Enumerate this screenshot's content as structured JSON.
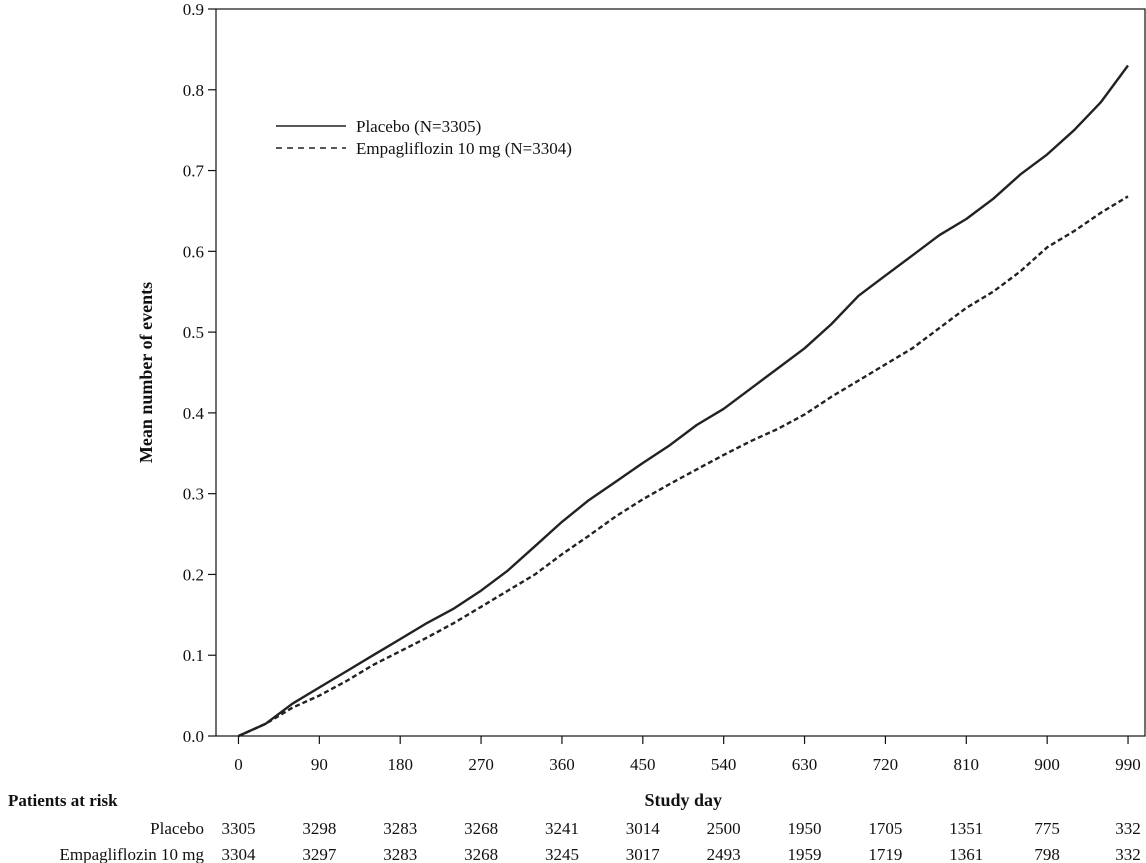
{
  "chart_data": {
    "type": "line",
    "title": "",
    "xlabel": "Study day",
    "ylabel": "Mean number of events",
    "xlim": [
      -25,
      1010
    ],
    "ylim": [
      0.0,
      0.9
    ],
    "x_ticks": [
      0,
      90,
      180,
      270,
      360,
      450,
      540,
      630,
      720,
      810,
      900,
      990
    ],
    "x_tick_labels": [
      "0",
      "90",
      "180",
      "270",
      "360",
      "450",
      "540",
      "630",
      "720",
      "810",
      "900",
      "990"
    ],
    "y_ticks": [
      0.0,
      0.1,
      0.2,
      0.3,
      0.4,
      0.5,
      0.6,
      0.7,
      0.8,
      0.9
    ],
    "y_tick_labels": [
      "0.0",
      "0.1",
      "0.2",
      "0.3",
      "0.4",
      "0.5",
      "0.6",
      "0.7",
      "0.8",
      "0.9"
    ],
    "grid": false,
    "legend_position": "top-left",
    "series": [
      {
        "name": "Placebo (N=3305)",
        "line_style": "solid",
        "color": "#222222",
        "x": [
          0,
          30,
          60,
          90,
          120,
          150,
          180,
          210,
          240,
          270,
          300,
          330,
          360,
          390,
          420,
          450,
          480,
          510,
          540,
          570,
          600,
          630,
          660,
          690,
          720,
          750,
          780,
          810,
          840,
          870,
          900,
          930,
          960,
          990
        ],
        "y": [
          0.0,
          0.015,
          0.04,
          0.06,
          0.08,
          0.1,
          0.12,
          0.14,
          0.158,
          0.18,
          0.205,
          0.235,
          0.265,
          0.292,
          0.315,
          0.338,
          0.36,
          0.385,
          0.405,
          0.43,
          0.455,
          0.48,
          0.51,
          0.545,
          0.57,
          0.595,
          0.62,
          0.64,
          0.665,
          0.695,
          0.72,
          0.75,
          0.785,
          0.83
        ]
      },
      {
        "name": "Empagliflozin 10 mg (N=3304)",
        "line_style": "dashed",
        "color": "#222222",
        "x": [
          0,
          30,
          60,
          90,
          120,
          150,
          180,
          210,
          240,
          270,
          300,
          330,
          360,
          390,
          420,
          450,
          480,
          510,
          540,
          570,
          600,
          630,
          660,
          690,
          720,
          750,
          780,
          810,
          840,
          870,
          900,
          930,
          960,
          990
        ],
        "y": [
          0.0,
          0.015,
          0.035,
          0.05,
          0.068,
          0.088,
          0.105,
          0.122,
          0.14,
          0.16,
          0.18,
          0.2,
          0.225,
          0.248,
          0.272,
          0.293,
          0.312,
          0.33,
          0.348,
          0.365,
          0.38,
          0.398,
          0.42,
          0.44,
          0.46,
          0.48,
          0.505,
          0.53,
          0.55,
          0.575,
          0.605,
          0.625,
          0.648,
          0.668
        ]
      }
    ]
  },
  "risk_table": {
    "header": "Patients at risk",
    "rows": [
      {
        "label": "Placebo",
        "values": [
          "3305",
          "3298",
          "3283",
          "3268",
          "3241",
          "3014",
          "2500",
          "1950",
          "1705",
          "1351",
          "775",
          "332"
        ]
      },
      {
        "label": "Empagliflozin 10 mg",
        "values": [
          "3304",
          "3297",
          "3283",
          "3268",
          "3245",
          "3017",
          "2493",
          "1959",
          "1719",
          "1361",
          "798",
          "332"
        ]
      }
    ]
  }
}
